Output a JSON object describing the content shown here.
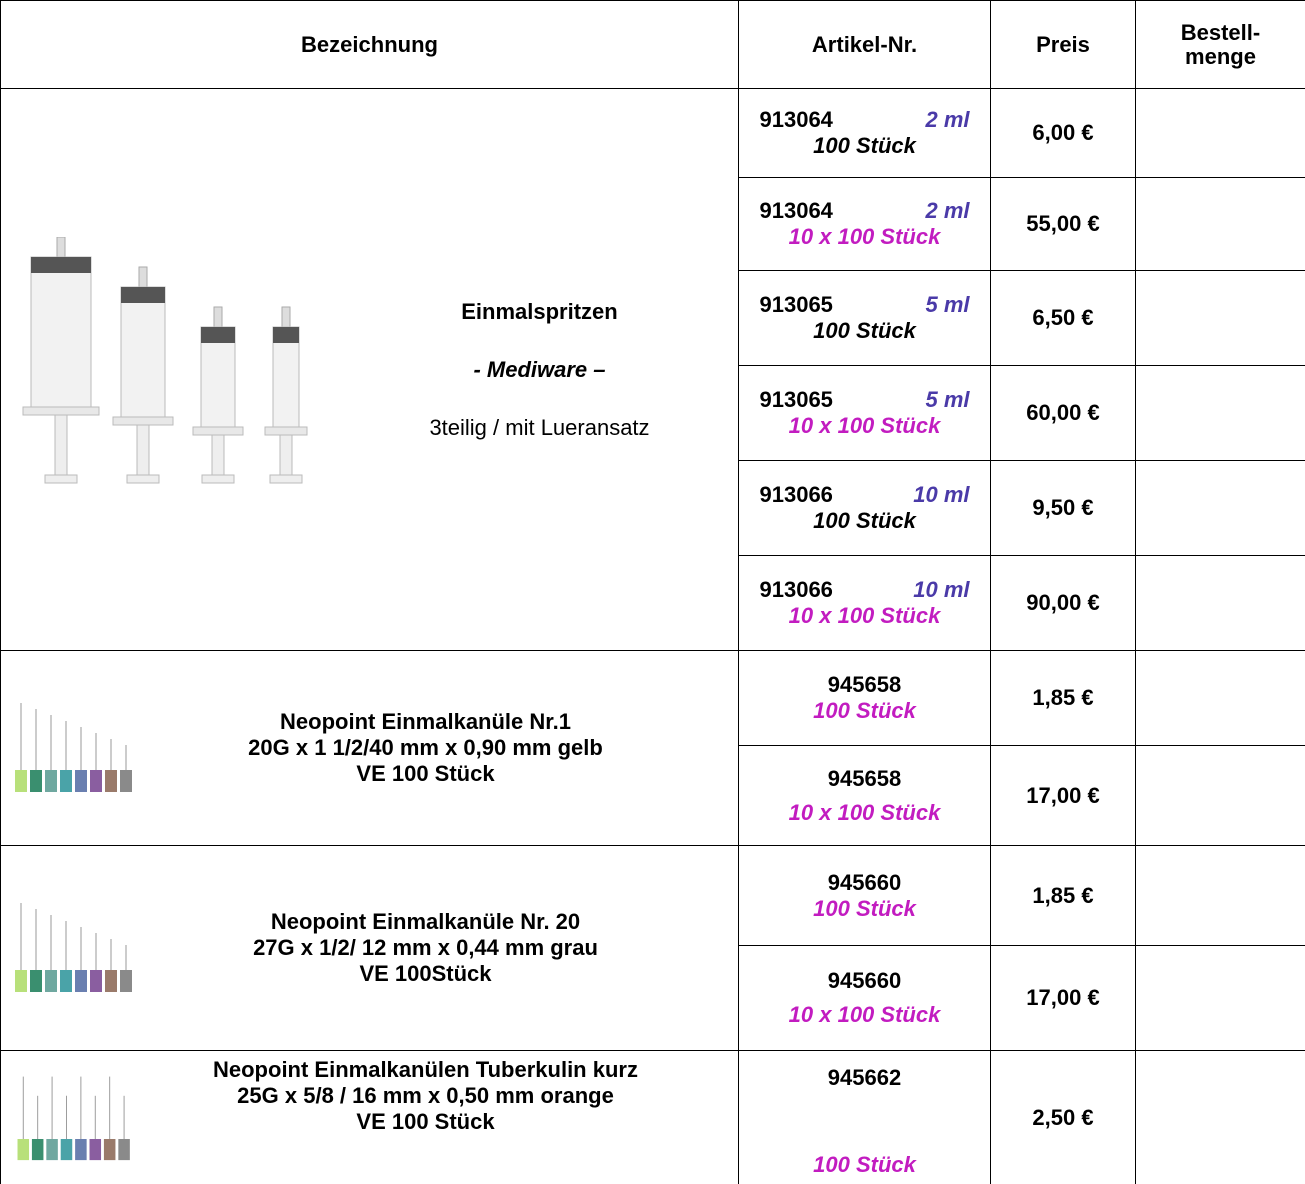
{
  "header": {
    "description": "Bezeichnung",
    "article": "Artikel-Nr.",
    "price": "Preis",
    "quantity": "Bestell-\nmenge"
  },
  "groups": [
    {
      "title": "Einmalspritzen",
      "subtitle": "- Mediware –",
      "note": "3teilig / mit Lueransatz",
      "items": [
        {
          "article": "913064",
          "size": "2 ml",
          "pack": "100 Stück",
          "price": "6,00 €"
        },
        {
          "article": "913064",
          "size": "2 ml",
          "pack": "10 x 100 Stück",
          "price": "55,00 €"
        },
        {
          "article": "913065",
          "size": "5 ml",
          "pack": "100 Stück",
          "price": "6,50 €"
        },
        {
          "article": "913065",
          "size": "5 ml",
          "pack": "10 x 100 Stück",
          "price": "60,00 €"
        },
        {
          "article": "913066",
          "size": "10 ml",
          "pack": "100 Stück",
          "price": "9,50 €"
        },
        {
          "article": "913066",
          "size": "10 ml",
          "pack": "10 x 100 Stück",
          "price": "90,00 €"
        }
      ]
    },
    {
      "title": "Neopoint Einmalkanüle Nr.1",
      "spec": "20G x 1 1/2/40 mm x 0,90 mm gelb",
      "unit": "VE 100 Stück",
      "items": [
        {
          "article": "945658",
          "pack": "100 Stück",
          "price": "1,85 €"
        },
        {
          "article": "945658",
          "pack": "10 x 100 Stück",
          "price": "17,00 €"
        }
      ]
    },
    {
      "title": "Neopoint Einmalkanüle Nr. 20",
      "spec": "27G x 1/2/ 12 mm x 0,44 mm grau",
      "unit": "VE 100Stück",
      "items": [
        {
          "article": "945660",
          "pack": "100 Stück",
          "price": "1,85 €"
        },
        {
          "article": "945660",
          "pack": "10 x 100 Stück",
          "price": "17,00 €"
        }
      ]
    },
    {
      "title": "Neopoint Einmalkanülen Tuberkulin kurz",
      "spec": "25G x 5/8 / 16 mm x 0,50 mm orange",
      "unit": "VE 100 Stück",
      "items": [
        {
          "article": "945662",
          "pack": "100 Stück",
          "price": "2,50 €"
        }
      ]
    }
  ]
}
